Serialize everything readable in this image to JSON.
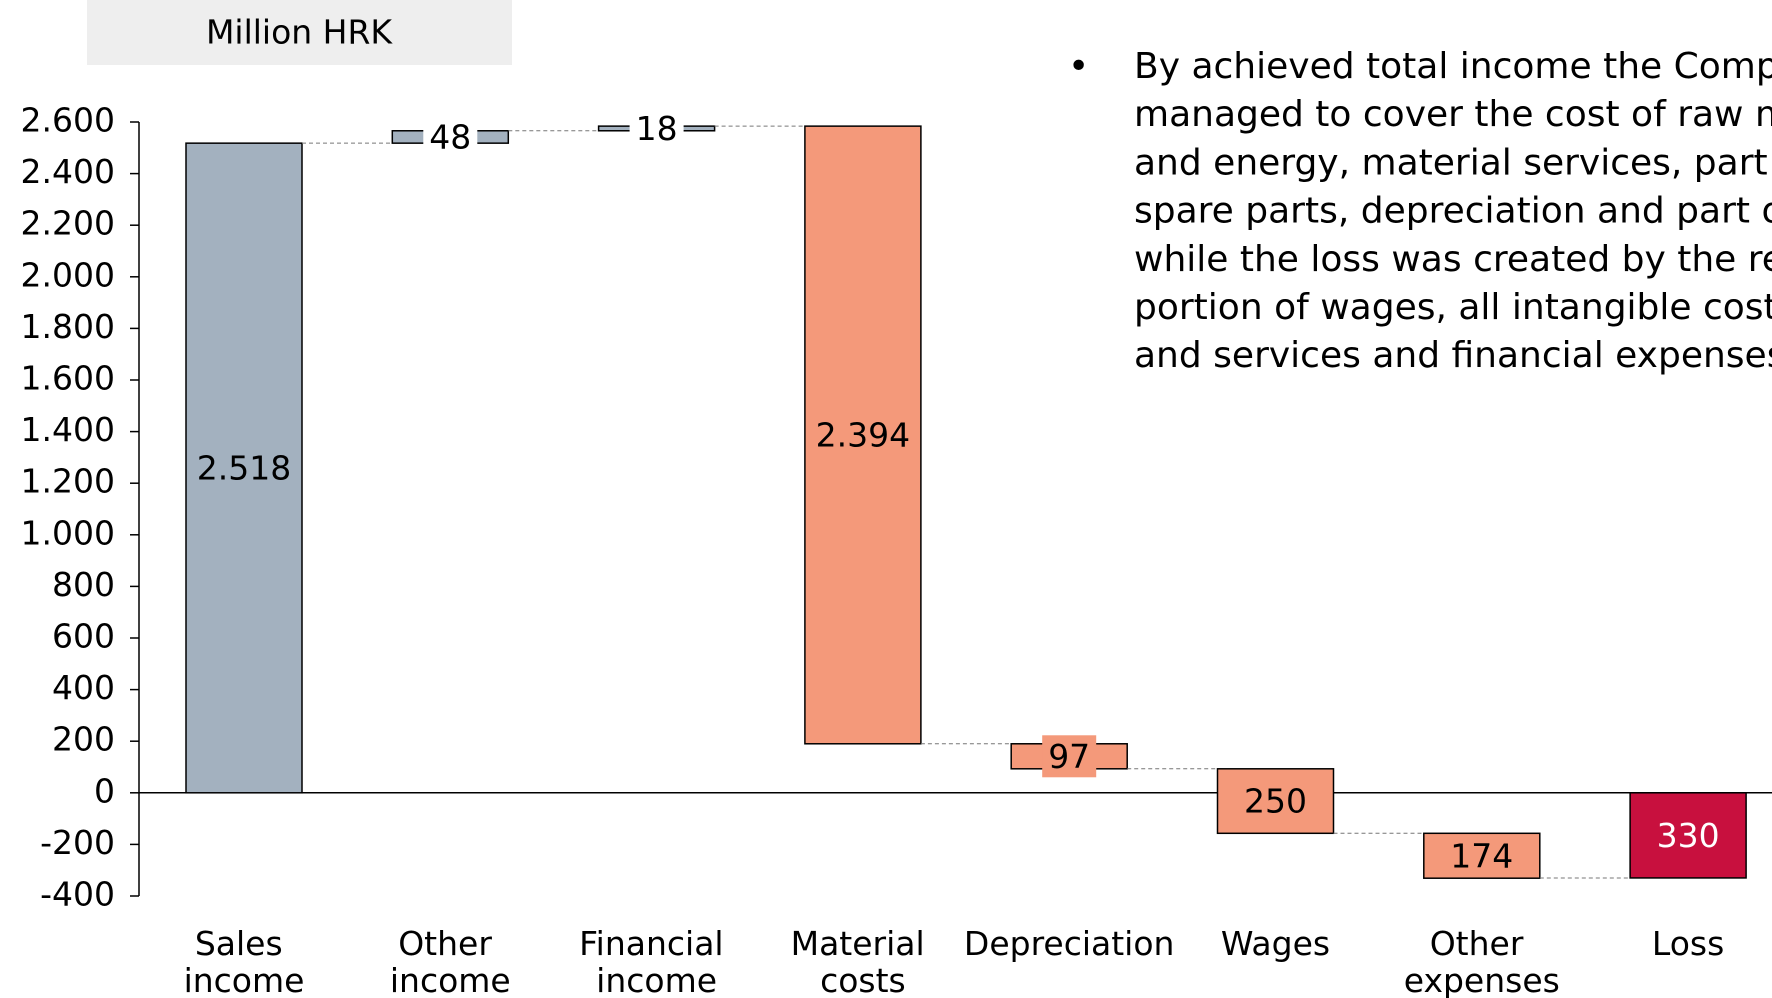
{
  "chart_data": {
    "type": "waterfall",
    "unit_label": "Million HRK",
    "categories": [
      "Sales income",
      "Other income",
      "Financial income",
      "Material costs",
      "Depreciation",
      "Wages",
      "Other expenses",
      "Loss"
    ],
    "values": [
      2518,
      48,
      18,
      -2394,
      -97,
      -250,
      -174,
      -330
    ],
    "value_labels": [
      "2.518",
      "48",
      "18",
      "2.394",
      "97",
      "250",
      "174",
      "330"
    ],
    "colors": [
      "#a3b1bf",
      "#a3b1bf",
      "#a3b1bf",
      "#f4997a",
      "#f4997a",
      "#f4997a",
      "#f4997a",
      "#c8103e"
    ],
    "ylim": [
      -400,
      2600
    ],
    "yticks": [
      -400,
      -200,
      0,
      200,
      400,
      600,
      800,
      {
        "value": 1000,
        "label": "1.000"
      },
      {
        "value": 1200,
        "label": "1.200"
      },
      {
        "value": 1400,
        "label": "1.400"
      },
      {
        "value": 1600,
        "label": "1.600"
      },
      {
        "value": 1800,
        "label": "1.800"
      },
      {
        "value": 2000,
        "label": "2.000"
      },
      {
        "value": 2200,
        "label": "2.200"
      },
      {
        "value": 2400,
        "label": "2.400"
      },
      {
        "value": 2600,
        "label": "2.600"
      }
    ],
    "annotation": [
      "By achieved total income the Company",
      "managed to cover the cost of raw material",
      "and energy, material services, part of",
      "spare parts, depreciation and part of wages,",
      "while the loss was created by the remaining",
      "portion of wages, all intangible costs",
      "and services and financial expenses."
    ]
  }
}
